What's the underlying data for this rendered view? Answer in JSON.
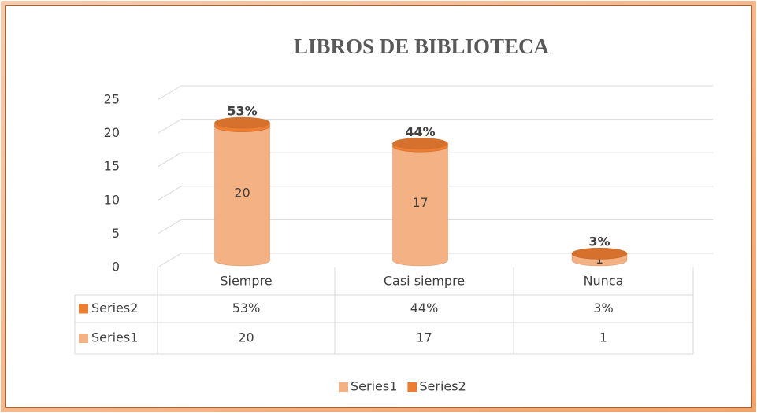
{
  "chart_data": {
    "type": "cylinder-stacked",
    "title": "LIBROS DE BIBLIOTECA",
    "categories": [
      "Siempre",
      "Casi siempre",
      "Nunca"
    ],
    "series": [
      {
        "name": "Series1",
        "color": "#f4b183",
        "values": [
          20,
          17,
          1
        ]
      },
      {
        "name": "Series2",
        "color": "#ed7d31",
        "values": [
          0.53,
          0.44,
          0.03
        ],
        "value_labels": [
          "53%",
          "44%",
          "3%"
        ]
      }
    ],
    "ylim": [
      0,
      25
    ],
    "yticks": [
      0,
      5,
      10,
      15,
      20,
      25
    ],
    "grid": true,
    "data_table": true,
    "legend": "bottom"
  }
}
